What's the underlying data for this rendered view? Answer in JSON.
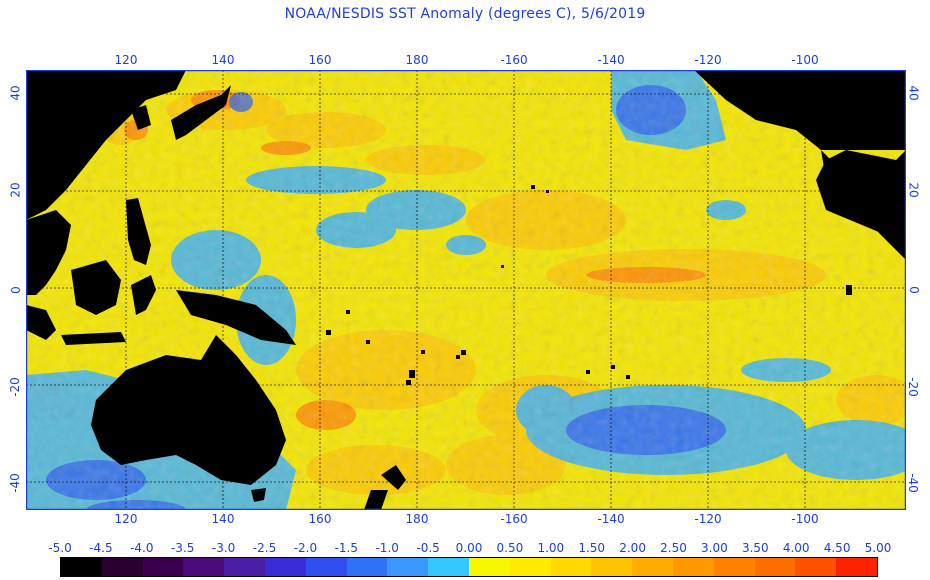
{
  "title": "NOAA/NESDIS SST Anomaly (degrees C), 5/6/2019",
  "axes": {
    "top_lon_labels": [
      "120",
      "140",
      "160",
      "180",
      "-160",
      "-140",
      "-120",
      "-100"
    ],
    "bottom_lon_labels": [
      "120",
      "140",
      "160",
      "180",
      "-160",
      "-140",
      "-120",
      "-100"
    ],
    "left_lat_labels": [
      "40",
      "20",
      "0",
      "-20",
      "-40"
    ],
    "right_lat_labels": [
      "40",
      "20",
      "0",
      "-20",
      "-40"
    ]
  },
  "colorbar": {
    "labels": [
      "-5.0",
      "-4.5",
      "-4.0",
      "-3.5",
      "-3.0",
      "-2.5",
      "-2.0",
      "-1.5",
      "-1.0",
      "-0.5",
      "0.00",
      "0.50",
      "1.00",
      "1.50",
      "2.00",
      "2.50",
      "3.00",
      "3.50",
      "4.00",
      "4.50",
      "5.00"
    ],
    "colors": [
      "#000000",
      "#2a0030",
      "#3a0050",
      "#4a0a7a",
      "#4b1ea8",
      "#3a2cd6",
      "#2f4ff0",
      "#2f72f7",
      "#3a97fb",
      "#35c8ff",
      "#f7f700",
      "#ffea00",
      "#ffd900",
      "#ffc400",
      "#ffad00",
      "#ff9800",
      "#ff8300",
      "#ff6e00",
      "#ff5200",
      "#ff2200"
    ]
  },
  "colors": {
    "ocean_base": "#f4e600",
    "land": "#000000",
    "frame": "#1f3fd6"
  }
}
